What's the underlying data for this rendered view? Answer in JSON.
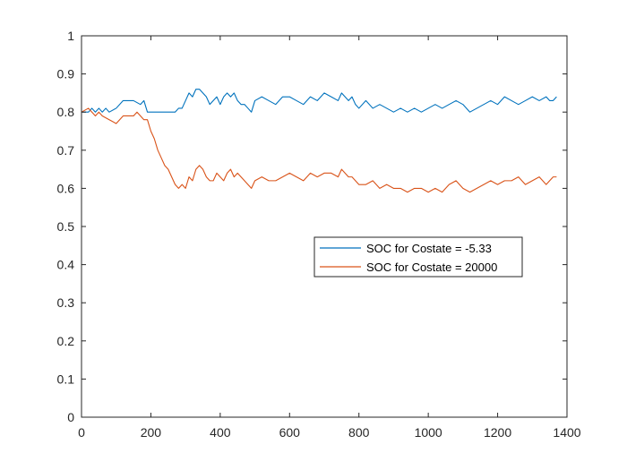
{
  "chart_data": {
    "type": "line",
    "title": "",
    "xlabel": "",
    "ylabel": "",
    "xlim": [
      0,
      1400
    ],
    "ylim": [
      0,
      1
    ],
    "grid": false,
    "legend_location": "center-right",
    "x_ticks": [
      "0",
      "200",
      "400",
      "600",
      "800",
      "1000",
      "1200",
      "1400"
    ],
    "y_ticks": [
      "0",
      "0.1",
      "0.2",
      "0.3",
      "0.4",
      "0.5",
      "0.6",
      "0.7",
      "0.8",
      "0.9",
      "1"
    ],
    "series": [
      {
        "name": "SOC for Costate = -5.33",
        "color": "#0072BD",
        "x": [
          0,
          20,
          30,
          40,
          50,
          60,
          70,
          80,
          100,
          120,
          130,
          150,
          170,
          180,
          190,
          200,
          220,
          250,
          270,
          280,
          290,
          300,
          310,
          320,
          330,
          340,
          350,
          360,
          370,
          380,
          390,
          400,
          410,
          420,
          430,
          440,
          450,
          460,
          470,
          480,
          490,
          500,
          520,
          540,
          560,
          580,
          600,
          620,
          640,
          660,
          680,
          700,
          720,
          740,
          750,
          760,
          770,
          780,
          790,
          800,
          820,
          840,
          860,
          880,
          900,
          920,
          940,
          960,
          980,
          1000,
          1020,
          1040,
          1060,
          1080,
          1100,
          1120,
          1140,
          1160,
          1180,
          1200,
          1220,
          1240,
          1260,
          1280,
          1300,
          1320,
          1340,
          1350,
          1360,
          1370
        ],
        "y": [
          0.8,
          0.8,
          0.81,
          0.8,
          0.81,
          0.8,
          0.81,
          0.8,
          0.81,
          0.83,
          0.83,
          0.83,
          0.82,
          0.83,
          0.8,
          0.8,
          0.8,
          0.8,
          0.8,
          0.81,
          0.81,
          0.83,
          0.85,
          0.84,
          0.86,
          0.86,
          0.85,
          0.84,
          0.82,
          0.83,
          0.84,
          0.82,
          0.84,
          0.85,
          0.84,
          0.85,
          0.83,
          0.82,
          0.82,
          0.81,
          0.8,
          0.83,
          0.84,
          0.83,
          0.82,
          0.84,
          0.84,
          0.83,
          0.82,
          0.84,
          0.83,
          0.85,
          0.84,
          0.83,
          0.85,
          0.84,
          0.83,
          0.84,
          0.82,
          0.81,
          0.83,
          0.81,
          0.82,
          0.81,
          0.8,
          0.81,
          0.8,
          0.81,
          0.8,
          0.81,
          0.82,
          0.81,
          0.82,
          0.83,
          0.82,
          0.8,
          0.81,
          0.82,
          0.83,
          0.82,
          0.84,
          0.83,
          0.82,
          0.83,
          0.84,
          0.83,
          0.84,
          0.83,
          0.83,
          0.84
        ]
      },
      {
        "name": "SOC for Costate = 20000",
        "color": "#D95319",
        "x": [
          0,
          20,
          30,
          40,
          50,
          60,
          80,
          100,
          120,
          130,
          150,
          160,
          170,
          180,
          190,
          200,
          210,
          220,
          230,
          240,
          250,
          260,
          270,
          280,
          290,
          300,
          310,
          320,
          330,
          340,
          350,
          360,
          370,
          380,
          390,
          400,
          410,
          420,
          430,
          440,
          450,
          460,
          470,
          480,
          490,
          500,
          520,
          540,
          560,
          580,
          600,
          620,
          640,
          660,
          680,
          700,
          720,
          740,
          750,
          760,
          770,
          780,
          800,
          820,
          840,
          860,
          880,
          900,
          920,
          940,
          960,
          980,
          1000,
          1020,
          1040,
          1060,
          1080,
          1100,
          1120,
          1140,
          1160,
          1180,
          1200,
          1220,
          1240,
          1260,
          1280,
          1300,
          1320,
          1340,
          1350,
          1360,
          1370
        ],
        "y": [
          0.8,
          0.81,
          0.8,
          0.79,
          0.8,
          0.79,
          0.78,
          0.77,
          0.79,
          0.79,
          0.79,
          0.8,
          0.79,
          0.78,
          0.78,
          0.75,
          0.73,
          0.7,
          0.68,
          0.66,
          0.65,
          0.63,
          0.61,
          0.6,
          0.61,
          0.6,
          0.63,
          0.62,
          0.65,
          0.66,
          0.65,
          0.63,
          0.62,
          0.62,
          0.64,
          0.63,
          0.62,
          0.64,
          0.65,
          0.63,
          0.64,
          0.63,
          0.62,
          0.61,
          0.6,
          0.62,
          0.63,
          0.62,
          0.62,
          0.63,
          0.64,
          0.63,
          0.62,
          0.64,
          0.63,
          0.64,
          0.64,
          0.63,
          0.65,
          0.64,
          0.63,
          0.63,
          0.61,
          0.61,
          0.62,
          0.6,
          0.61,
          0.6,
          0.6,
          0.59,
          0.6,
          0.6,
          0.59,
          0.6,
          0.59,
          0.61,
          0.62,
          0.6,
          0.59,
          0.6,
          0.61,
          0.62,
          0.61,
          0.62,
          0.62,
          0.63,
          0.61,
          0.62,
          0.63,
          0.61,
          0.62,
          0.63,
          0.63
        ]
      }
    ]
  }
}
